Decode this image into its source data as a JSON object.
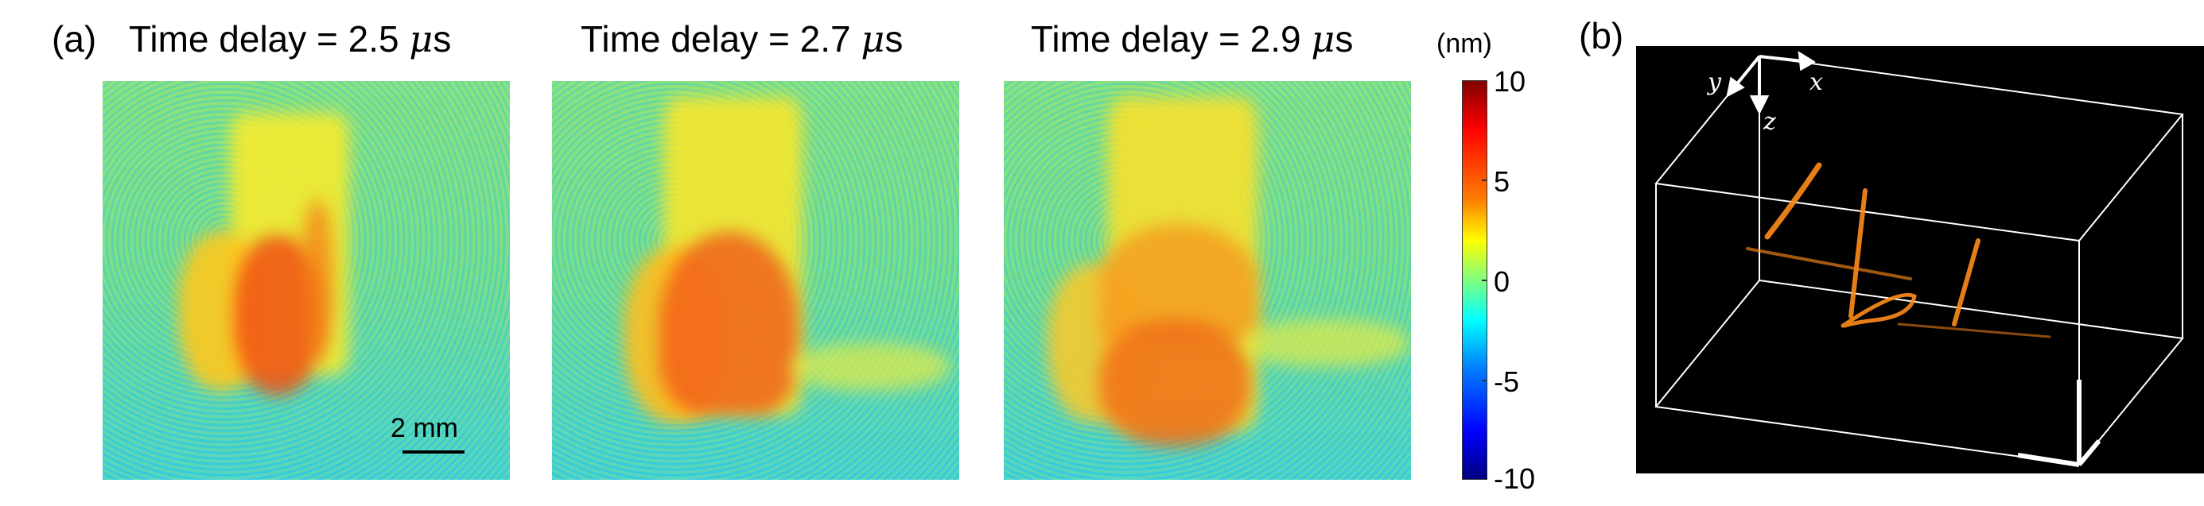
{
  "panel_a": {
    "label": "(a)",
    "frames": [
      {
        "title_prefix": "Time delay = 2.5 ",
        "unit_mu": "μ",
        "unit_s": "s"
      },
      {
        "title_prefix": "Time delay = 2.7 ",
        "unit_mu": "μ",
        "unit_s": "s"
      },
      {
        "title_prefix": "Time delay = 2.9 ",
        "unit_mu": "μ",
        "unit_s": "s"
      }
    ],
    "scale_bar": "2 mm"
  },
  "colorbar": {
    "unit": "(nm)",
    "ticks": [
      "10",
      "5",
      "0",
      "-5",
      "-10"
    ],
    "range": [
      -10,
      10
    ],
    "colormap": "jet"
  },
  "panel_b": {
    "label": "(b)",
    "axes": {
      "x": "x",
      "y": "y",
      "z": "z"
    },
    "stroke_color": "#ff8c1a"
  }
}
